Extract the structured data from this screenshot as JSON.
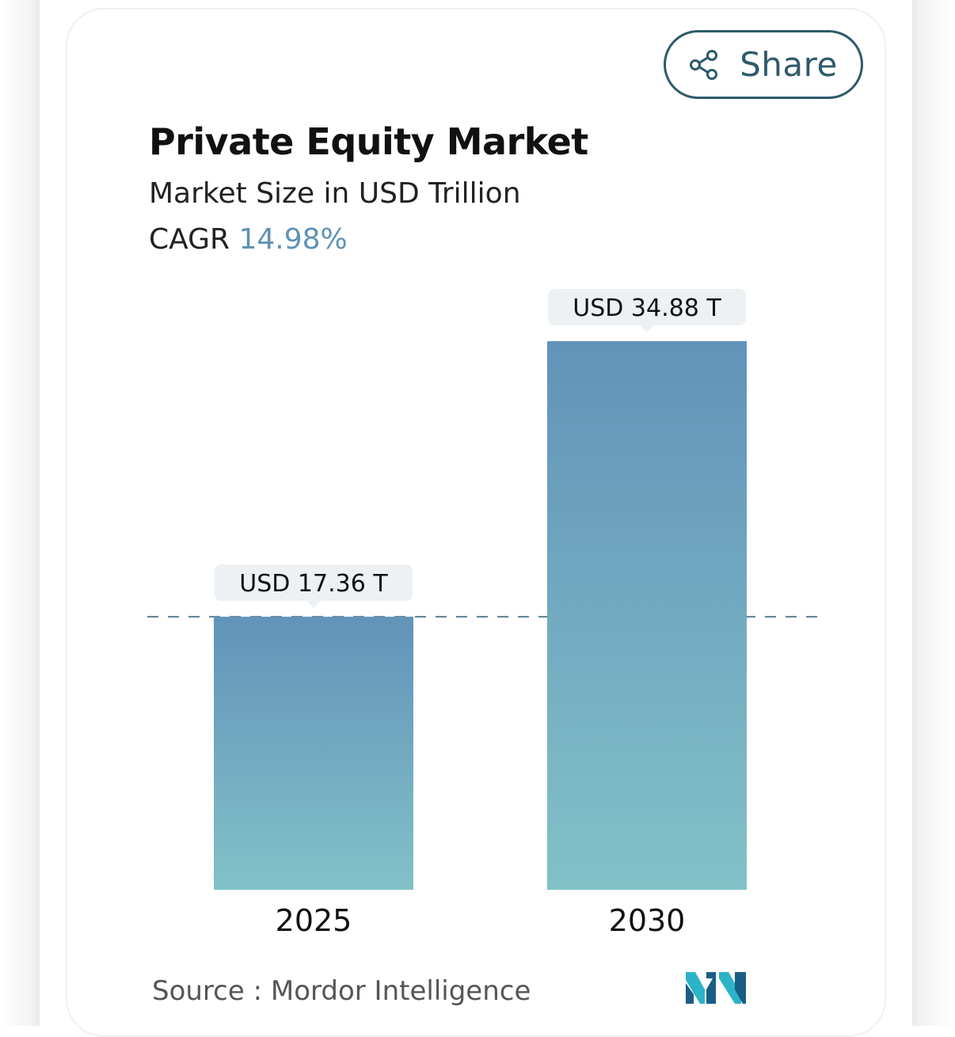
{
  "share": {
    "label": "Share",
    "icon": "share-icon"
  },
  "header": {
    "title": "Private Equity Market",
    "subtitle": "Market Size in USD Trillion",
    "cagr_label": "CAGR",
    "cagr_value": "14.98%"
  },
  "chart_data": {
    "type": "bar",
    "title": "Private Equity Market",
    "subtitle": "Market Size in USD Trillion",
    "categories": [
      "2025",
      "2030"
    ],
    "values": [
      17.36,
      34.88
    ],
    "data_labels": [
      "USD 17.36 T",
      "USD 34.88 T"
    ],
    "unit": "USD Trillion",
    "ylim": [
      0,
      34.88
    ],
    "reference_line": {
      "value": 17.36,
      "style": "dashed"
    },
    "xlabel": "",
    "ylabel": "",
    "grid": false,
    "colors": {
      "bar_top": "#6293b9",
      "bar_bottom": "#82c1c8",
      "label_bg": "#edf1f3",
      "dash": "#5c7f91"
    }
  },
  "footer": {
    "source_label": "Source :",
    "source_value": "Mordor Intelligence",
    "logo_text": "MI"
  },
  "colors": {
    "accent": "#5f93b5",
    "share_border": "#2f5a6b"
  }
}
